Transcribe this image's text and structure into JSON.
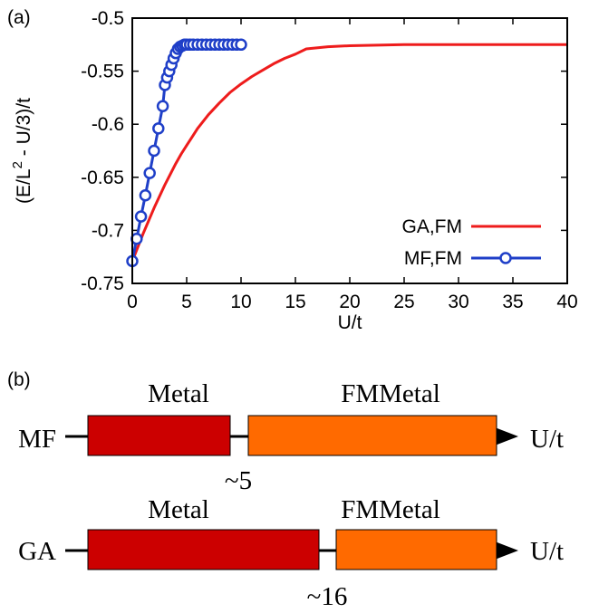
{
  "panel_a_label": "(a)",
  "panel_b_label": "(b)",
  "chart_data": {
    "type": "line",
    "title": "",
    "xlabel": "U/t",
    "ylabel_parts": [
      "(E/L",
      "2",
      " - U/3)/t"
    ],
    "xlim": [
      0,
      40
    ],
    "ylim": [
      -0.75,
      -0.5
    ],
    "xticks": [
      0,
      5,
      10,
      15,
      20,
      25,
      30,
      35,
      40
    ],
    "yticks": [
      -0.75,
      -0.7,
      -0.65,
      -0.6,
      -0.55,
      -0.5
    ],
    "xtick_labels": [
      "0",
      "5",
      "10",
      "15",
      "20",
      "25",
      "30",
      "35",
      "40"
    ],
    "ytick_labels": [
      "-0.75",
      "-0.7",
      "-0.65",
      "-0.6",
      "-0.55",
      "-0.5"
    ],
    "grid": false,
    "legend_position": "bottom-right",
    "series": [
      {
        "name": "GA,FM",
        "color": "#ee1c1c",
        "marker": "none",
        "x": [
          0,
          0.5,
          1,
          1.5,
          2,
          2.5,
          3,
          3.5,
          4,
          4.5,
          5,
          5.5,
          6,
          7,
          8,
          9,
          10,
          11,
          12,
          13,
          14,
          15,
          16,
          18,
          20,
          25,
          30,
          35,
          40
        ],
        "y": [
          -0.729,
          -0.716,
          -0.703,
          -0.691,
          -0.679,
          -0.668,
          -0.657,
          -0.647,
          -0.637,
          -0.628,
          -0.62,
          -0.612,
          -0.604,
          -0.591,
          -0.58,
          -0.57,
          -0.562,
          -0.555,
          -0.549,
          -0.543,
          -0.538,
          -0.534,
          -0.529,
          -0.527,
          -0.526,
          -0.525,
          -0.525,
          -0.525,
          -0.525
        ]
      },
      {
        "name": "MF,FM",
        "color": "#1f3fc8",
        "marker": "circle",
        "x": [
          0,
          0.4,
          0.8,
          1.2,
          1.6,
          2.0,
          2.4,
          2.8,
          3.0,
          3.2,
          3.4,
          3.6,
          3.8,
          4.0,
          4.2,
          4.4,
          4.6,
          4.8,
          5.0,
          5.3,
          5.6,
          6.0,
          6.4,
          6.8,
          7.2,
          7.6,
          8.0,
          8.4,
          8.8,
          9.2,
          9.6,
          10.0
        ],
        "y": [
          -0.729,
          -0.708,
          -0.687,
          -0.667,
          -0.646,
          -0.625,
          -0.604,
          -0.583,
          -0.563,
          -0.556,
          -0.55,
          -0.544,
          -0.538,
          -0.533,
          -0.529,
          -0.527,
          -0.526,
          -0.525,
          -0.525,
          -0.525,
          -0.525,
          -0.525,
          -0.525,
          -0.525,
          -0.525,
          -0.525,
          -0.525,
          -0.525,
          -0.525,
          -0.525,
          -0.525,
          -0.525
        ]
      }
    ]
  },
  "phase_diagram": {
    "rows": [
      {
        "label": "MF",
        "arrow_label": "U/t",
        "transition_label": "~5",
        "phases": [
          {
            "name": "Metal",
            "color": "#cc0000"
          },
          {
            "name": "FMMetal",
            "color": "#ff6a00"
          }
        ]
      },
      {
        "label": "GA",
        "arrow_label": "U/t",
        "transition_label": "~16",
        "phases": [
          {
            "name": "Metal",
            "color": "#cc0000"
          },
          {
            "name": "FMMetal",
            "color": "#ff6a00"
          }
        ]
      }
    ]
  }
}
